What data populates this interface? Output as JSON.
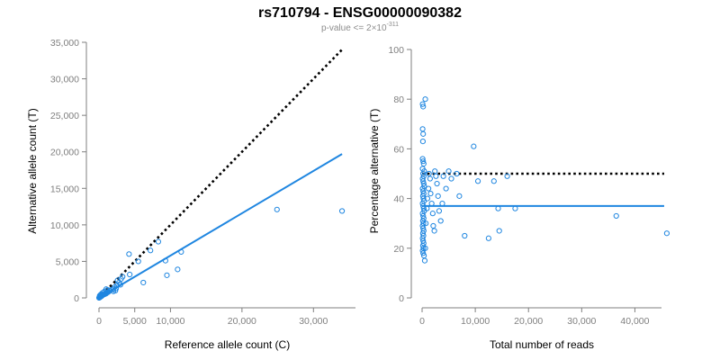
{
  "title": "rs710794 - ENSG00000090382",
  "subtitle": {
    "prefix": "p-value <= 2×10",
    "exponent": "-311"
  },
  "colors": {
    "points": "#1f86e0",
    "fit_line": "#1f86e0",
    "reference_line": "#000000",
    "axis": "#7f7f7f",
    "tick_text": "#7f7f7f",
    "subtitle_text": "#8c8c8c"
  },
  "chart_data": [
    {
      "type": "scatter",
      "xlabel": "Reference allele count (C)",
      "ylabel": "Alternative allele count (T)",
      "xlim": [
        0,
        35000
      ],
      "ylim": [
        0,
        35000
      ],
      "x_ticks": [
        0,
        5000,
        10000,
        20000,
        30000
      ],
      "x_tick_labels": [
        "0",
        "5,000",
        "10,000",
        "20,000",
        "30,000"
      ],
      "y_ticks": [
        0,
        5000,
        10000,
        15000,
        20000,
        25000,
        30000,
        35000
      ],
      "y_tick_labels": [
        "0",
        "5,000",
        "10,000",
        "15,000",
        "20,000",
        "25,000",
        "30,000",
        "35,000"
      ],
      "reference_line": {
        "style": "dotted",
        "from": [
          0,
          0
        ],
        "to": [
          34000,
          34000
        ]
      },
      "fit_line": {
        "style": "solid",
        "from": [
          0,
          0
        ],
        "to": [
          34000,
          19700
        ]
      },
      "points": [
        [
          10,
          10
        ],
        [
          30,
          20
        ],
        [
          60,
          40
        ],
        [
          90,
          70
        ],
        [
          120,
          90
        ],
        [
          150,
          110
        ],
        [
          200,
          150
        ],
        [
          250,
          180
        ],
        [
          300,
          200
        ],
        [
          350,
          260
        ],
        [
          400,
          300
        ],
        [
          450,
          320
        ],
        [
          500,
          380
        ],
        [
          600,
          420
        ],
        [
          700,
          480
        ],
        [
          800,
          500
        ],
        [
          900,
          560
        ],
        [
          1000,
          600
        ],
        [
          1100,
          700
        ],
        [
          1300,
          800
        ],
        [
          1500,
          1000
        ],
        [
          1700,
          1100
        ],
        [
          2000,
          1200
        ],
        [
          2200,
          1500
        ],
        [
          2500,
          1700
        ],
        [
          100,
          300
        ],
        [
          200,
          400
        ],
        [
          300,
          500
        ],
        [
          500,
          700
        ],
        [
          800,
          900
        ],
        [
          1000,
          1200
        ],
        [
          1200,
          1100
        ],
        [
          2000,
          900
        ],
        [
          2300,
          1000
        ],
        [
          2400,
          1300
        ],
        [
          2600,
          2400
        ],
        [
          2800,
          2100
        ],
        [
          3000,
          1800
        ],
        [
          3100,
          2600
        ],
        [
          3300,
          2900
        ],
        [
          4200,
          6000
        ],
        [
          4300,
          3200
        ],
        [
          5500,
          5000
        ],
        [
          6200,
          2100
        ],
        [
          7200,
          6500
        ],
        [
          8300,
          7700
        ],
        [
          9300,
          5100
        ],
        [
          9500,
          3100
        ],
        [
          11000,
          3900
        ],
        [
          11500,
          6300
        ],
        [
          24900,
          12100
        ],
        [
          34000,
          11900
        ]
      ]
    },
    {
      "type": "scatter",
      "xlabel": "Total number of reads",
      "ylabel": "Percentage alternative (T)",
      "xlim": [
        0,
        45000
      ],
      "ylim": [
        0,
        100
      ],
      "x_ticks": [
        0,
        10000,
        20000,
        30000,
        40000
      ],
      "x_tick_labels": [
        "0",
        "10,000",
        "20,000",
        "30,000",
        "40,000"
      ],
      "y_ticks": [
        0,
        20,
        40,
        60,
        80,
        100
      ],
      "y_tick_labels": [
        "0",
        "20",
        "40",
        "60",
        "80",
        "100"
      ],
      "reference_line": {
        "style": "dotted",
        "y": 50,
        "x_range": [
          0,
          45500
        ]
      },
      "fit_line": {
        "style": "solid",
        "y": 37,
        "x_range": [
          0,
          45500
        ]
      },
      "points": [
        [
          100,
          78
        ],
        [
          200,
          77
        ],
        [
          600,
          80
        ],
        [
          100,
          68
        ],
        [
          200,
          66
        ],
        [
          150,
          63
        ],
        [
          100,
          56
        ],
        [
          200,
          55
        ],
        [
          300,
          54
        ],
        [
          100,
          52
        ],
        [
          400,
          51
        ],
        [
          200,
          50
        ],
        [
          300,
          49
        ],
        [
          100,
          48
        ],
        [
          200,
          47
        ],
        [
          300,
          46
        ],
        [
          400,
          45
        ],
        [
          100,
          44
        ],
        [
          200,
          43
        ],
        [
          300,
          42
        ],
        [
          150,
          41
        ],
        [
          250,
          40
        ],
        [
          350,
          39
        ],
        [
          100,
          38
        ],
        [
          200,
          37
        ],
        [
          300,
          36
        ],
        [
          400,
          35
        ],
        [
          100,
          34
        ],
        [
          200,
          33
        ],
        [
          300,
          32
        ],
        [
          150,
          31
        ],
        [
          250,
          30
        ],
        [
          100,
          29
        ],
        [
          200,
          28
        ],
        [
          300,
          27
        ],
        [
          150,
          26
        ],
        [
          250,
          25
        ],
        [
          100,
          24
        ],
        [
          200,
          23
        ],
        [
          300,
          22
        ],
        [
          150,
          21
        ],
        [
          250,
          20
        ],
        [
          100,
          19
        ],
        [
          200,
          18
        ],
        [
          350,
          17
        ],
        [
          500,
          15
        ],
        [
          600,
          20
        ],
        [
          700,
          30
        ],
        [
          900,
          36
        ],
        [
          1000,
          40
        ],
        [
          1200,
          44
        ],
        [
          1300,
          50
        ],
        [
          1500,
          48
        ],
        [
          1600,
          42
        ],
        [
          1800,
          38
        ],
        [
          2000,
          34
        ],
        [
          2100,
          29
        ],
        [
          2300,
          27
        ],
        [
          2400,
          51
        ],
        [
          2600,
          49
        ],
        [
          2800,
          46
        ],
        [
          3000,
          41
        ],
        [
          3200,
          35
        ],
        [
          3500,
          31
        ],
        [
          3800,
          38
        ],
        [
          4000,
          49
        ],
        [
          4500,
          44
        ],
        [
          5000,
          51
        ],
        [
          5500,
          48
        ],
        [
          6500,
          50
        ],
        [
          7000,
          41
        ],
        [
          8000,
          25
        ],
        [
          9700,
          61
        ],
        [
          10500,
          47
        ],
        [
          12500,
          24
        ],
        [
          13500,
          47
        ],
        [
          14300,
          36
        ],
        [
          14500,
          27
        ],
        [
          16000,
          49
        ],
        [
          17500,
          36
        ],
        [
          36500,
          33
        ],
        [
          46000,
          26
        ]
      ]
    }
  ]
}
